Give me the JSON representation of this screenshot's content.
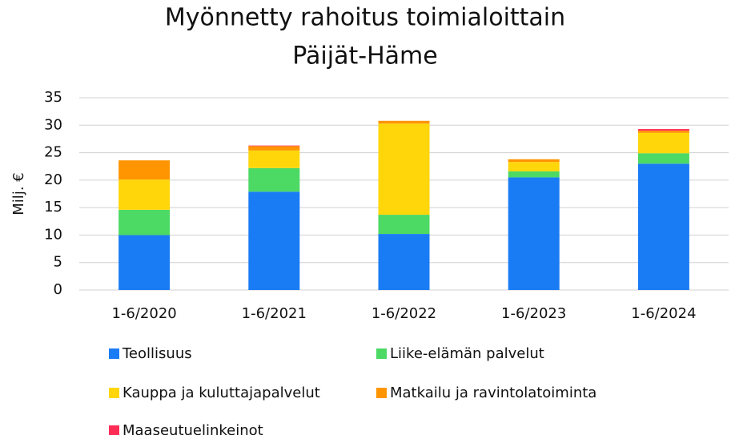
{
  "chart_data": {
    "type": "stacked_bar",
    "title": [
      "Myönnetty rahoitus toimialoittain",
      "Päijät-Häme"
    ],
    "y_label": "Milj. €",
    "categories": [
      "1-6/2020",
      "1-6/2021",
      "1-6/2022",
      "1-6/2023",
      "1-6/2024"
    ],
    "series": [
      {
        "name": "Teollisuus",
        "color": "#1a7cf5",
        "values": [
          10.0,
          17.9,
          10.2,
          20.5,
          23.0
        ]
      },
      {
        "name": "Liike-elämän palvelut",
        "color": "#4cd964",
        "values": [
          4.6,
          4.3,
          3.5,
          1.1,
          1.9
        ]
      },
      {
        "name": "Kauppa ja kuluttajapalvelut",
        "color": "#ffd60a",
        "values": [
          5.5,
          3.2,
          16.6,
          1.7,
          3.7
        ]
      },
      {
        "name": "Matkailu ja ravintolatoiminta",
        "color": "#ff9500",
        "values": [
          3.5,
          0.8,
          0.5,
          0.5,
          0.4
        ]
      },
      {
        "name": "Maaseutuelinkeinot",
        "color": "#ff2d55",
        "values": [
          0,
          0.1,
          0,
          0,
          0.3
        ]
      }
    ],
    "ylim": [
      0,
      35
    ],
    "yticks": [
      0,
      5,
      10,
      15,
      20,
      25,
      30,
      35
    ],
    "grid": true
  }
}
